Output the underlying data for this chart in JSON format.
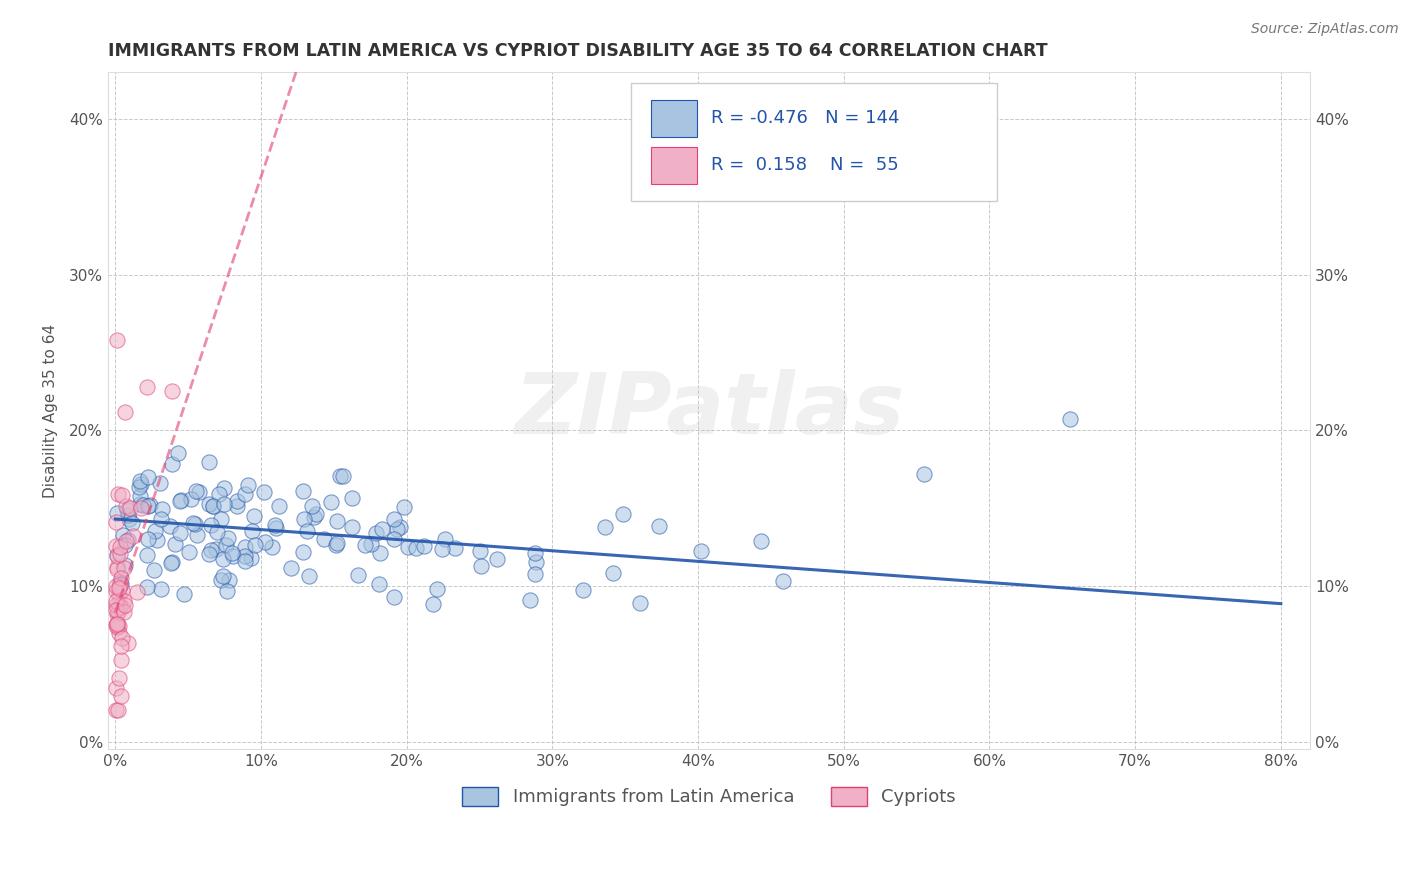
{
  "title": "IMMIGRANTS FROM LATIN AMERICA VS CYPRIOT DISABILITY AGE 35 TO 64 CORRELATION CHART",
  "source": "Source: ZipAtlas.com",
  "ylabel": "Disability Age 35 to 64",
  "xlim": [
    -0.005,
    0.82
  ],
  "ylim": [
    -0.005,
    0.43
  ],
  "xticks": [
    0.0,
    0.1,
    0.2,
    0.3,
    0.4,
    0.5,
    0.6,
    0.7,
    0.8
  ],
  "yticks": [
    0.0,
    0.1,
    0.2,
    0.3,
    0.4
  ],
  "blue_R": -0.476,
  "blue_N": 144,
  "pink_R": 0.158,
  "pink_N": 55,
  "blue_color": "#a8c4e0",
  "blue_line_color": "#2255aa",
  "pink_color": "#f0b0c8",
  "pink_line_color": "#e04070",
  "legend_label_blue": "Immigrants from Latin America",
  "legend_label_pink": "Cypriots",
  "watermark_zip": "ZIP",
  "watermark_atlas": "atlas",
  "background_color": "#ffffff",
  "grid_color": "#bbbbbb",
  "title_color": "#333333",
  "axis_label_color": "#555555",
  "tick_color": "#555555",
  "title_fontsize": 12.5,
  "label_fontsize": 11,
  "tick_fontsize": 11,
  "legend_fontsize": 13,
  "source_fontsize": 10,
  "scatter_size": 120,
  "scatter_alpha": 0.55,
  "line_alpha_blue": 0.9,
  "line_alpha_pink": 0.6,
  "blue_intercept": 0.143,
  "blue_slope": -0.068,
  "pink_intercept": 0.083,
  "pink_slope": 2.8
}
